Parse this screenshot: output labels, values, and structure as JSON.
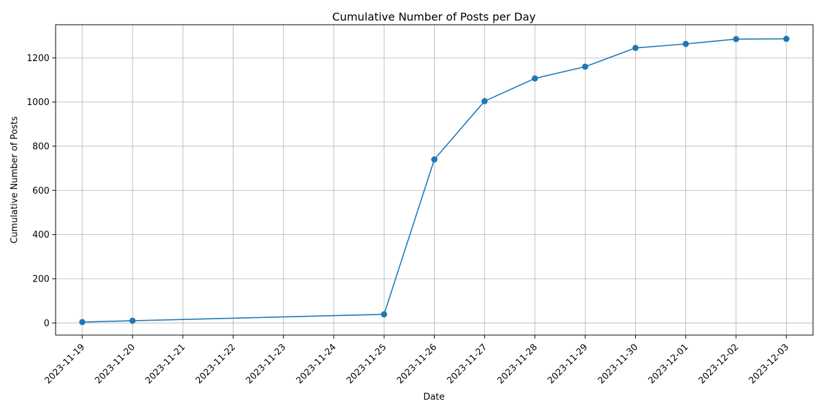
{
  "chart_data": {
    "type": "line",
    "title": "Cumulative Number of Posts per Day",
    "xlabel": "Date",
    "ylabel": "Cumulative Number of Posts",
    "x_ticks": [
      "2023-11-19",
      "2023-11-20",
      "2023-11-21",
      "2023-11-22",
      "2023-11-23",
      "2023-11-24",
      "2023-11-25",
      "2023-11-26",
      "2023-11-27",
      "2023-11-28",
      "2023-11-29",
      "2023-11-30",
      "2023-12-01",
      "2023-12-02",
      "2023-12-03"
    ],
    "y_ticks": [
      0,
      200,
      400,
      600,
      800,
      1000,
      1200
    ],
    "ylim": [
      -55,
      1350
    ],
    "xlim": [
      "2023-11-18T11:17",
      "2023-12-03T12:43"
    ],
    "grid": true,
    "marker": "circle",
    "series": [
      {
        "color": "#1f77b4",
        "points": [
          {
            "x": "2023-11-19",
            "y": 4
          },
          {
            "x": "2023-11-20",
            "y": 10
          },
          {
            "x": "2023-11-25",
            "y": 39
          },
          {
            "x": "2023-11-26",
            "y": 740
          },
          {
            "x": "2023-11-27",
            "y": 1004
          },
          {
            "x": "2023-11-28",
            "y": 1107
          },
          {
            "x": "2023-11-29",
            "y": 1160
          },
          {
            "x": "2023-11-30",
            "y": 1245
          },
          {
            "x": "2023-12-01",
            "y": 1263
          },
          {
            "x": "2023-12-02",
            "y": 1285
          },
          {
            "x": "2023-12-03",
            "y": 1286
          }
        ]
      }
    ]
  }
}
